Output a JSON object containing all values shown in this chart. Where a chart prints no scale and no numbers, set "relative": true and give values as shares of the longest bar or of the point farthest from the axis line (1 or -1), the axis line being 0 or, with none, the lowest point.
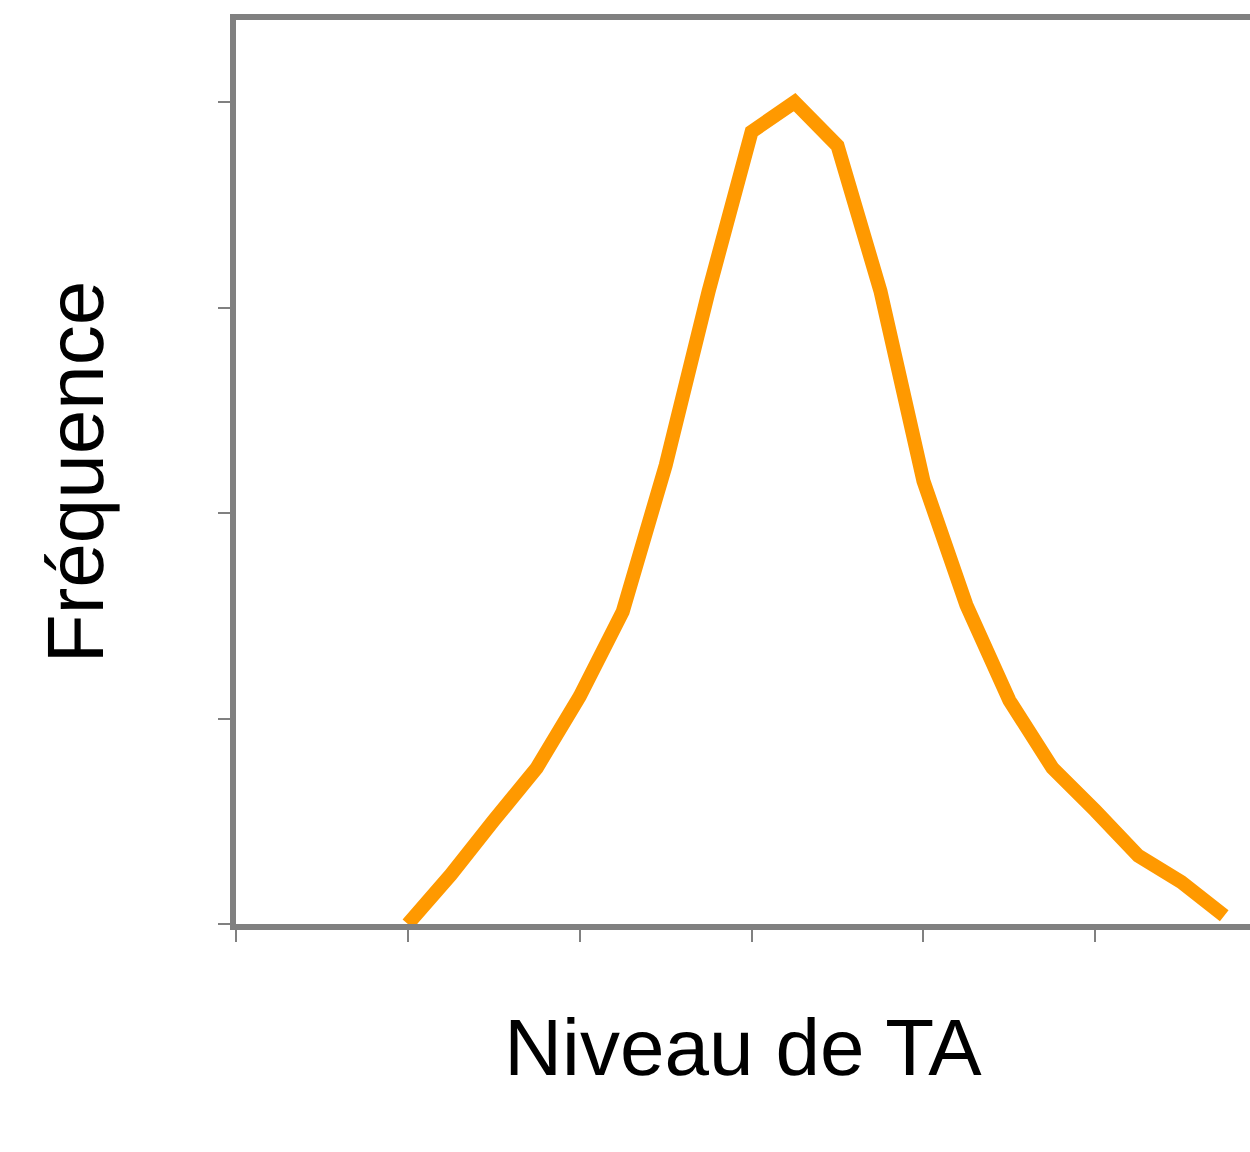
{
  "chart_data": {
    "type": "line",
    "relative": true,
    "xlabel": "Niveau de TA",
    "ylabel": "Fréquence",
    "categories": [
      null,
      null,
      null,
      null,
      null,
      null,
      null,
      null,
      null,
      null,
      null,
      null,
      null,
      null,
      null,
      null,
      null,
      null,
      null,
      null,
      null,
      null,
      null,
      null
    ],
    "series": [
      {
        "color": "#ff9900",
        "values": [
          null,
          null,
          null,
          null,
          0,
          0.06,
          0.126,
          0.19,
          0.277,
          0.38,
          0.558,
          0.77,
          0.964,
          1,
          0.947,
          0.77,
          0.539,
          0.388,
          0.272,
          0.19,
          0.138,
          0.083,
          0.051,
          0.01
        ]
      }
    ],
    "legend": false,
    "marker": "none",
    "line_style": "solid",
    "tick_labels": false
  }
}
